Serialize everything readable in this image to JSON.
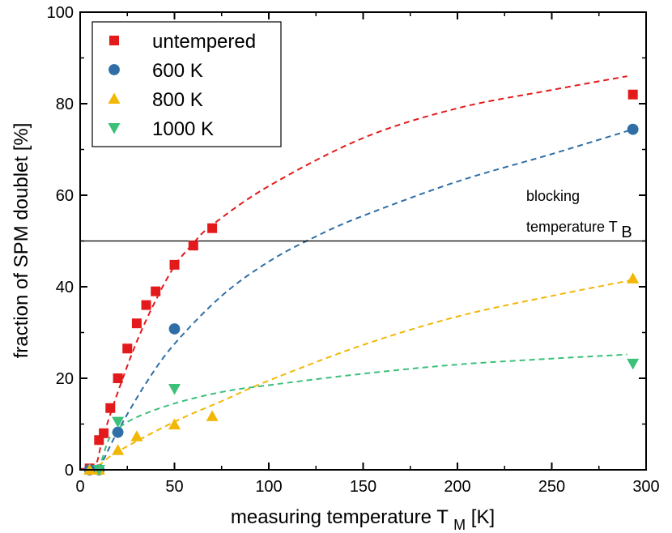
{
  "chart_data": {
    "type": "scatter",
    "xlabel": "measuring temperature T",
    "xlabel_sub": "M",
    "xlabel_unit": "[K]",
    "ylabel": "fraction of SPM doublet [%]",
    "xlim": [
      0,
      300
    ],
    "ylim": [
      0,
      100
    ],
    "xticks": [
      0,
      50,
      100,
      150,
      200,
      250,
      300
    ],
    "yticks": [
      0,
      20,
      40,
      60,
      80,
      100
    ],
    "grid": false,
    "legend_position": "top-left",
    "series": [
      {
        "name": "untempered",
        "marker": "square",
        "color": "#e31a1c",
        "points": [
          [
            5,
            0.3
          ],
          [
            10,
            6.5
          ],
          [
            12.5,
            8
          ],
          [
            16,
            13.5
          ],
          [
            20,
            20
          ],
          [
            25,
            26.5
          ],
          [
            30,
            32
          ],
          [
            35,
            36
          ],
          [
            40,
            39
          ],
          [
            50,
            44.8
          ],
          [
            60,
            49
          ],
          [
            70,
            52.8
          ],
          [
            293,
            82
          ]
        ],
        "fit": [
          [
            0,
            0.2
          ],
          [
            8,
            1
          ],
          [
            12,
            7
          ],
          [
            20,
            17
          ],
          [
            30,
            28
          ],
          [
            40,
            37
          ],
          [
            50,
            44.5
          ],
          [
            60,
            49.5
          ],
          [
            70,
            53.5
          ],
          [
            100,
            62
          ],
          [
            150,
            72.5
          ],
          [
            200,
            79
          ],
          [
            250,
            83
          ],
          [
            290,
            86
          ]
        ]
      },
      {
        "name": "600 K",
        "marker": "circle",
        "color": "#2f6ea6",
        "points": [
          [
            5,
            0
          ],
          [
            10,
            0
          ],
          [
            20,
            8.2
          ],
          [
            50,
            30.8
          ],
          [
            293,
            74.4
          ]
        ],
        "fit": [
          [
            5,
            0
          ],
          [
            10,
            0.5
          ],
          [
            20,
            8.5
          ],
          [
            35,
            19
          ],
          [
            50,
            27.5
          ],
          [
            75,
            38
          ],
          [
            100,
            45.5
          ],
          [
            125,
            51
          ],
          [
            150,
            55.5
          ],
          [
            200,
            63
          ],
          [
            250,
            69
          ],
          [
            293,
            74.4
          ]
        ]
      },
      {
        "name": "800 K",
        "marker": "triangle-up",
        "color": "#f2b705",
        "points": [
          [
            5,
            0
          ],
          [
            10,
            0
          ],
          [
            20,
            4.3
          ],
          [
            30,
            7.3
          ],
          [
            50,
            9.9
          ],
          [
            70,
            11.7
          ],
          [
            293,
            41.8
          ]
        ],
        "fit": [
          [
            5,
            0
          ],
          [
            10,
            1
          ],
          [
            20,
            4
          ],
          [
            50,
            10.5
          ],
          [
            75,
            15
          ],
          [
            100,
            19.5
          ],
          [
            150,
            27.3
          ],
          [
            200,
            33.5
          ],
          [
            250,
            38
          ],
          [
            293,
            41.5
          ]
        ]
      },
      {
        "name": "1000 K",
        "marker": "triangle-down",
        "color": "#3cc07a",
        "points": [
          [
            10,
            0
          ],
          [
            20,
            10.5
          ],
          [
            50,
            17.7
          ],
          [
            293,
            23.2
          ]
        ],
        "fit": [
          [
            10,
            0
          ],
          [
            15,
            6.5
          ],
          [
            20,
            9
          ],
          [
            30,
            11.5
          ],
          [
            50,
            14.5
          ],
          [
            75,
            17
          ],
          [
            100,
            18.5
          ],
          [
            150,
            21
          ],
          [
            200,
            23
          ],
          [
            250,
            24.3
          ],
          [
            290,
            25.2
          ]
        ]
      }
    ],
    "reference_line": {
      "y": 50
    },
    "annotation": {
      "line1": "blocking",
      "line2": "temperature T",
      "subscript": "B"
    }
  }
}
